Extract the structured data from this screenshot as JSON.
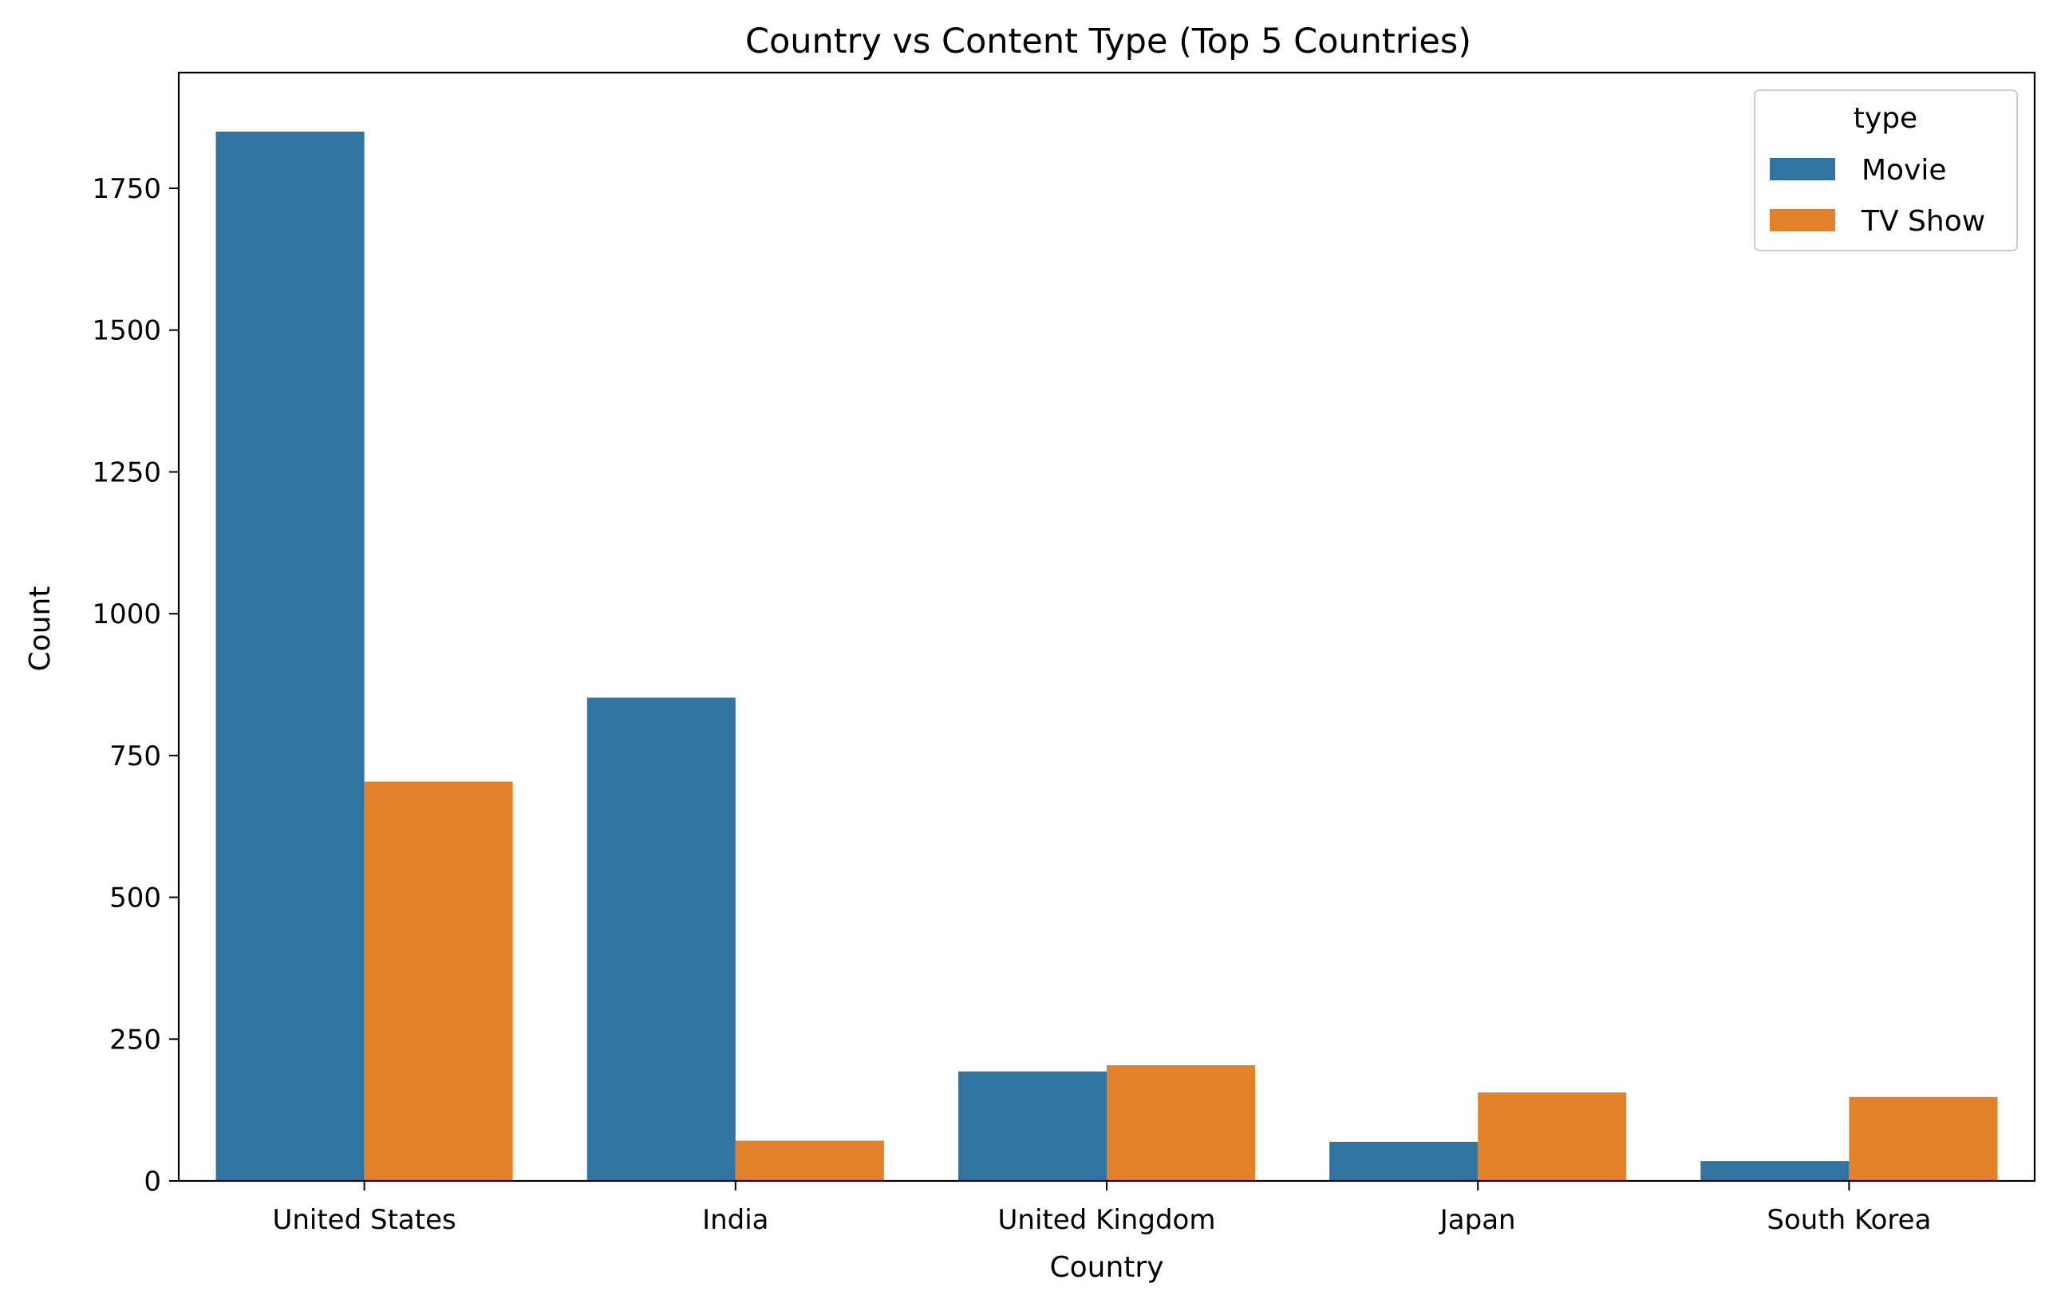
{
  "chart_data": {
    "type": "bar",
    "title": "Country vs Content Type (Top 5 Countries)",
    "xlabel": "Country",
    "ylabel": "Count",
    "categories": [
      "United States",
      "India",
      "United Kingdom",
      "Japan",
      "South Korea"
    ],
    "series": [
      {
        "name": "Movie",
        "color": "#3274a1",
        "values": [
          1850,
          852,
          193,
          69,
          35
        ]
      },
      {
        "name": "TV Show",
        "color": "#e1812c",
        "values": [
          704,
          71,
          204,
          156,
          148
        ]
      }
    ],
    "ylim": [
      0,
      1954
    ],
    "yticks": [
      0,
      250,
      500,
      750,
      1000,
      1250,
      1500,
      1750
    ],
    "legend": {
      "title": "type",
      "position": "top-right"
    },
    "grid": false
  }
}
